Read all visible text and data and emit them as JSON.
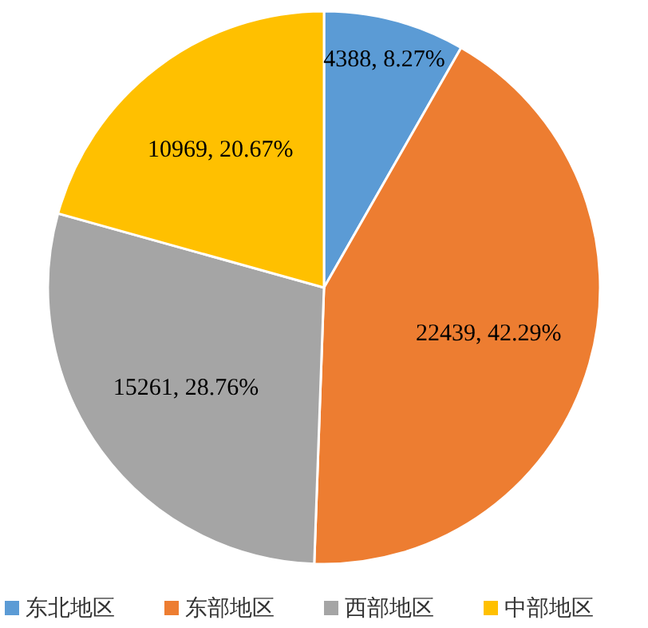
{
  "chart_data": {
    "type": "pie",
    "categories": [
      "东北地区",
      "东部地区",
      "西部地区",
      "中部地区"
    ],
    "values": [
      4388,
      22439,
      15261,
      10969
    ],
    "colors": [
      "#5b9bd5",
      "#ed7d31",
      "#a5a5a5",
      "#ffc000"
    ],
    "value_labels": [
      "4388, 8.27%",
      "22439, 42.29%",
      "15261, 28.76%",
      "10969, 20.67%"
    ],
    "legend": "bottom"
  }
}
